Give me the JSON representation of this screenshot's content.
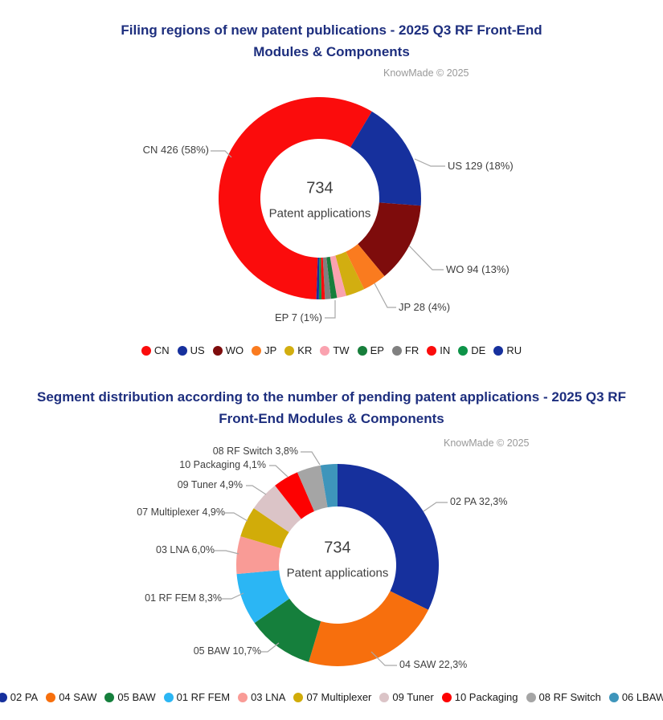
{
  "chart_data": [
    {
      "type": "donut",
      "title_line1": "Filing regions of new patent publications - 2025 Q3 RF Front-End",
      "title_line2": "Modules & Components",
      "title": "Filing regions of new patent publications - 2025 Q3 RF Front-End Modules & Components",
      "copyright": "KnowMade © 2025",
      "center_value": "734",
      "center_label": "Patent applications",
      "total": 734,
      "start_angle_deg": 182,
      "legend_position": "bottom",
      "series": [
        {
          "name": "CN",
          "value": 426,
          "pct": "58%",
          "color": "#FB0C0C"
        },
        {
          "name": "US",
          "value": 129,
          "pct": "18%",
          "color": "#16309D"
        },
        {
          "name": "WO",
          "value": 94,
          "pct": "13%",
          "color": "#7E0C0C"
        },
        {
          "name": "JP",
          "value": 28,
          "pct": "4%",
          "color": "#FA7B1F"
        },
        {
          "name": "KR",
          "value": 22,
          "color": "#D2AE10",
          "approx": true
        },
        {
          "name": "TW",
          "value": 11,
          "color": "#FAA2AF",
          "approx": true
        },
        {
          "name": "EP",
          "value": 7,
          "pct": "1%",
          "color": "#177E3B"
        },
        {
          "name": "FR",
          "value": 7,
          "color": "#808080",
          "approx": true
        },
        {
          "name": "IN",
          "value": 4,
          "color": "#FB0C0C",
          "approx": true
        },
        {
          "name": "DE",
          "value": 3,
          "color": "#0D9348",
          "approx": true
        },
        {
          "name": "RU",
          "value": 3,
          "color": "#16309D",
          "approx": true
        }
      ],
      "callouts": {
        "cn": "CN 426 (58%)",
        "us": "US 129 (18%)",
        "wo": "WO 94 (13%)",
        "jp": "JP 28 (4%)",
        "ep": "EP 7 (1%)"
      }
    },
    {
      "type": "donut",
      "title_line1": "Segment distribution according to the number of pending patent applications - 2025 Q3 RF",
      "title_line2": "Front-End Modules & Components",
      "title": "Segment distribution according to the number of pending patent applications - 2025 Q3 RF Front-End Modules & Components",
      "copyright": "KnowMade © 2025",
      "center_value": "734",
      "center_label": "Patent applications",
      "total_pct": 100,
      "start_angle_deg": 0,
      "legend_position": "bottom",
      "series": [
        {
          "name": "02 PA",
          "value": 32.3,
          "pct": "32,3%",
          "color": "#16309D"
        },
        {
          "name": "04 SAW",
          "value": 22.3,
          "pct": "22,3%",
          "color": "#F76F0D"
        },
        {
          "name": "05 BAW",
          "value": 10.7,
          "pct": "10,7%",
          "color": "#157F3C"
        },
        {
          "name": "01 RF FEM",
          "value": 8.3,
          "pct": "8,3%",
          "color": "#2BB6F4"
        },
        {
          "name": "03 LNA",
          "value": 6.0,
          "pct": "6,0%",
          "color": "#F99B96"
        },
        {
          "name": "07 Multiplexer",
          "value": 4.9,
          "pct": "4,9%",
          "color": "#D1AC09"
        },
        {
          "name": "09 Tuner",
          "value": 4.9,
          "pct": "4,9%",
          "color": "#DBC4C7"
        },
        {
          "name": "10 Packaging",
          "value": 4.1,
          "pct": "4,1%",
          "color": "#FD0101"
        },
        {
          "name": "08 RF Switch",
          "value": 3.8,
          "pct": "3,8%",
          "color": "#A5A5A5"
        },
        {
          "name": "06 LBAW",
          "value": 2.7,
          "color": "#3E95BB",
          "approx": true
        }
      ],
      "callouts": {
        "pa": "02 PA 32,3%",
        "saw": "04 SAW 22,3%",
        "baw": "05 BAW 10,7%",
        "rf_fem": "01 RF FEM 8,3%",
        "lna": "03 LNA 6,0%",
        "multiplexer": "07 Multiplexer 4,9%",
        "tuner": "09 Tuner 4,9%",
        "packaging": "10 Packaging 4,1%",
        "rf_switch": "08 RF Switch 3,8%"
      }
    }
  ]
}
